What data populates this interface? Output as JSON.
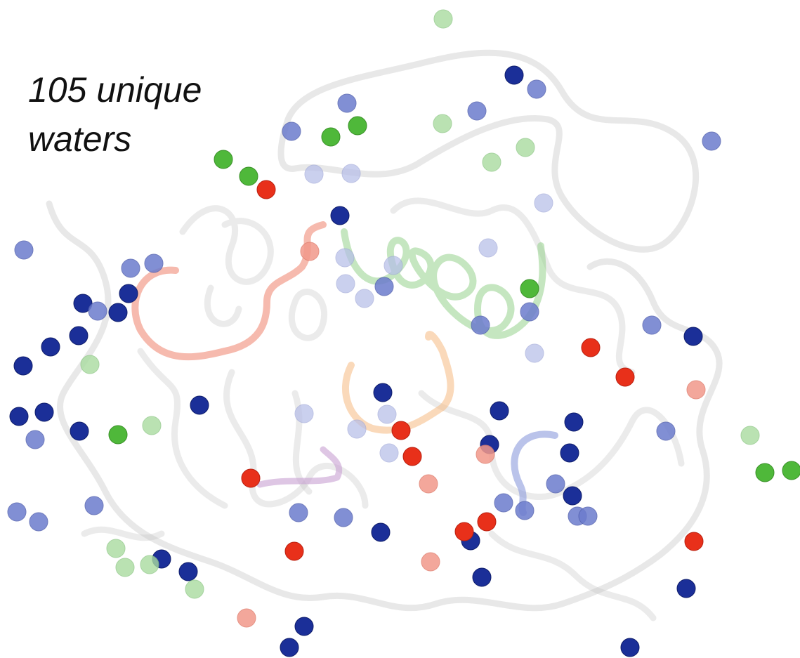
{
  "label": {
    "line1": "105 unique",
    "line2": "waters"
  }
}
